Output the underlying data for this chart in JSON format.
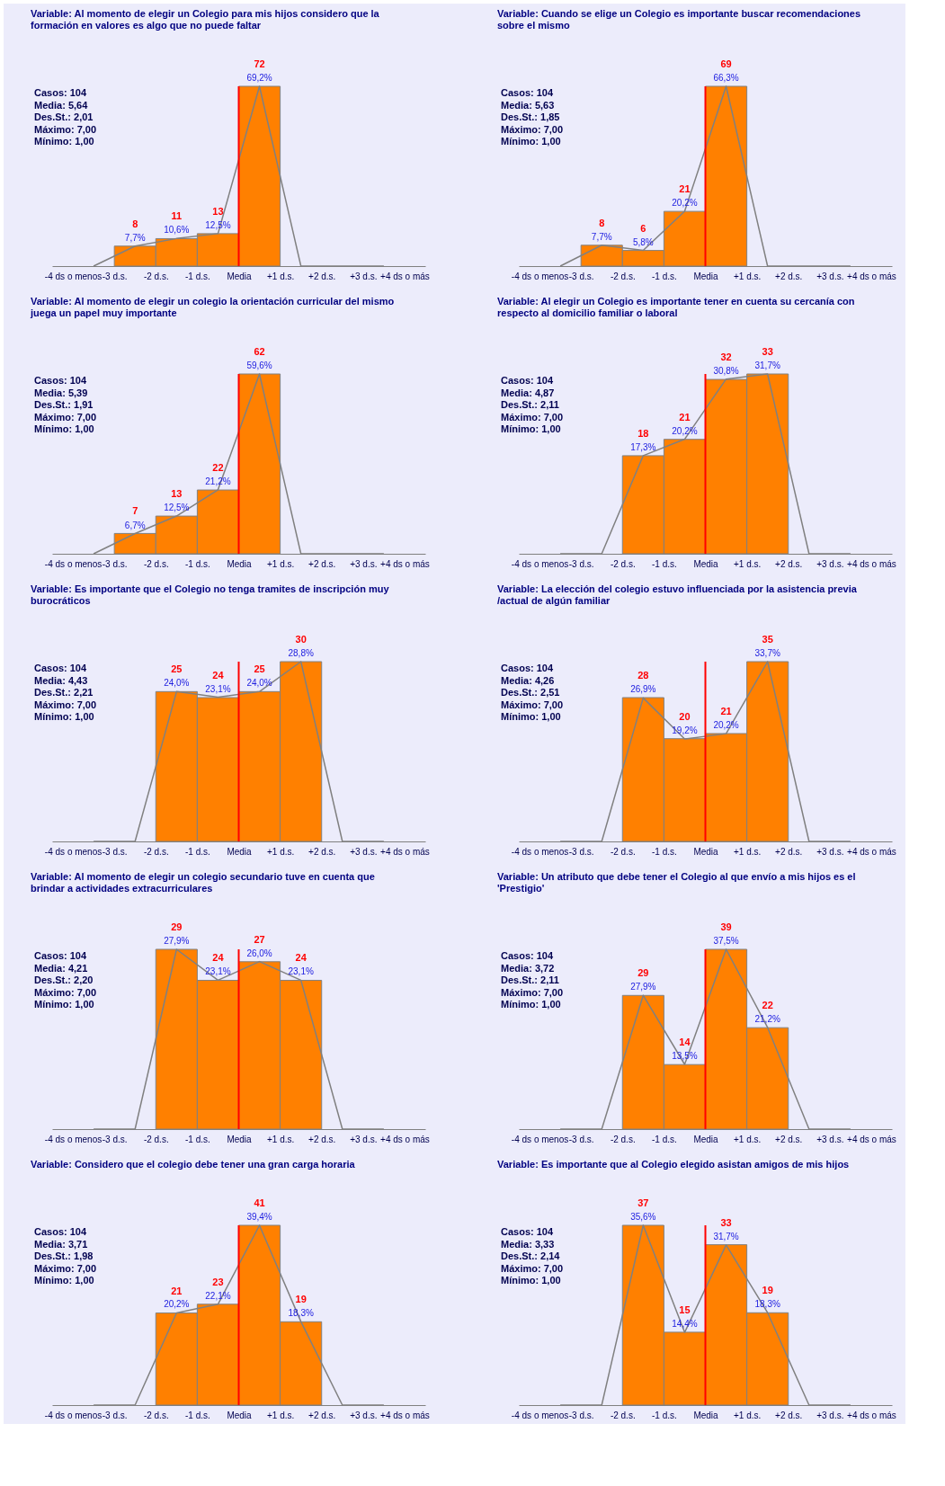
{
  "chart_data": [
    {
      "type": "bar",
      "title": "Variable: Al momento de elegir un Colegio para mis hijos considero que la formación en valores es algo que no puede faltar",
      "x": [
        -2.5,
        -1.5,
        -0.5,
        0.5
      ],
      "values": [
        8,
        11,
        13,
        72
      ],
      "data_labels": true,
      "color": "#ff8000",
      "xlim": [
        -4.5,
        4.5
      ],
      "xticks": [
        {
          "value": -4,
          "label": "-4 ds o menos"
        },
        {
          "value": -3,
          "label": "-3 d.s."
        },
        {
          "value": -2,
          "label": "-2 d.s."
        },
        {
          "value": -1,
          "label": "-1 d.s."
        },
        {
          "value": 0,
          "label": "Media"
        },
        {
          "value": 1,
          "label": "+1 d.s."
        },
        {
          "value": 2,
          "label": "+2 d.s."
        },
        {
          "value": 3,
          "label": "+3 d.s."
        },
        {
          "value": 4,
          "label": "+4 ds o más"
        }
      ],
      "tick_labels": "x",
      "series": [
        {
          "type": "line",
          "axis": "y2",
          "color": "#808080",
          "x": [
            -3.5,
            -2.5,
            -1.5,
            -0.5,
            0.5,
            1.5,
            2.5,
            3.5
          ],
          "values": [
            0,
            7.7,
            10.6,
            12.5,
            69.2,
            0,
            0,
            0
          ],
          "value_labels": [
            null,
            "7,7%",
            "10,6%",
            "12,5%",
            "69,2%",
            null,
            null,
            null
          ]
        }
      ],
      "ref_lines": [
        {
          "axis": "x",
          "value": 0,
          "color": "#ff0000"
        }
      ],
      "annotations": [
        "Casos: 104",
        "Media: 5,64",
        "Des.St.: 2,01",
        "Máximo: 7,00",
        "Mínimo: 1,00"
      ]
    },
    {
      "type": "bar",
      "title": "Variable: Cuando se elige un Colegio es importante buscar recomendaciones sobre el mismo",
      "x": [
        -2.5,
        -1.5,
        -0.5,
        0.5
      ],
      "values": [
        8,
        6,
        21,
        69
      ],
      "data_labels": true,
      "color": "#ff8000",
      "xlim": [
        -4.5,
        4.5
      ],
      "xticks": [
        {
          "value": -4,
          "label": "-4 ds o menos"
        },
        {
          "value": -3,
          "label": "-3 d.s."
        },
        {
          "value": -2,
          "label": "-2 d.s."
        },
        {
          "value": -1,
          "label": "-1 d.s."
        },
        {
          "value": 0,
          "label": "Media"
        },
        {
          "value": 1,
          "label": "+1 d.s."
        },
        {
          "value": 2,
          "label": "+2 d.s."
        },
        {
          "value": 3,
          "label": "+3 d.s."
        },
        {
          "value": 4,
          "label": "+4 ds o más"
        }
      ],
      "tick_labels": "x",
      "series": [
        {
          "type": "line",
          "axis": "y2",
          "color": "#808080",
          "x": [
            -3.5,
            -2.5,
            -1.5,
            -0.5,
            0.5,
            1.5,
            2.5,
            3.5
          ],
          "values": [
            0,
            7.7,
            5.8,
            20.2,
            66.3,
            0,
            0,
            0
          ],
          "value_labels": [
            null,
            "7,7%",
            "5,8%",
            "20,2%",
            "66,3%",
            null,
            null,
            null
          ]
        }
      ],
      "ref_lines": [
        {
          "axis": "x",
          "value": 0,
          "color": "#ff0000"
        }
      ],
      "annotations": [
        "Casos: 104",
        "Media: 5,63",
        "Des.St.: 1,85",
        "Máximo: 7,00",
        "Mínimo: 1,00"
      ]
    },
    {
      "type": "bar",
      "title": "Variable: Al momento de elegir un colegio la orientación curricular del mismo juega un papel muy importante",
      "x": [
        -2.5,
        -1.5,
        -0.5,
        0.5
      ],
      "values": [
        7,
        13,
        22,
        62
      ],
      "data_labels": true,
      "color": "#ff8000",
      "xlim": [
        -4.5,
        4.5
      ],
      "xticks": [
        {
          "value": -4,
          "label": "-4 ds o menos"
        },
        {
          "value": -3,
          "label": "-3 d.s."
        },
        {
          "value": -2,
          "label": "-2 d.s."
        },
        {
          "value": -1,
          "label": "-1 d.s."
        },
        {
          "value": 0,
          "label": "Media"
        },
        {
          "value": 1,
          "label": "+1 d.s."
        },
        {
          "value": 2,
          "label": "+2 d.s."
        },
        {
          "value": 3,
          "label": "+3 d.s."
        },
        {
          "value": 4,
          "label": "+4 ds o más"
        }
      ],
      "tick_labels": "x",
      "series": [
        {
          "type": "line",
          "axis": "y2",
          "color": "#808080",
          "x": [
            -3.5,
            -2.5,
            -1.5,
            -0.5,
            0.5,
            1.5,
            2.5,
            3.5
          ],
          "values": [
            0,
            6.7,
            12.5,
            21.2,
            59.6,
            0,
            0,
            0
          ],
          "value_labels": [
            null,
            "6,7%",
            "12,5%",
            "21,2%",
            "59,6%",
            null,
            null,
            null
          ]
        }
      ],
      "ref_lines": [
        {
          "axis": "x",
          "value": 0,
          "color": "#ff0000"
        }
      ],
      "annotations": [
        "Casos: 104",
        "Media: 5,39",
        "Des.St.: 1,91",
        "Máximo: 7,00",
        "Mínimo: 1,00"
      ]
    },
    {
      "type": "bar",
      "title": "Variable: Al elegir un Colegio es importante tener en cuenta su cercanía con respecto al domicilio familiar o laboral",
      "x": [
        -1.5,
        -0.5,
        0.5,
        1.5
      ],
      "values": [
        18,
        21,
        32,
        33
      ],
      "data_labels": true,
      "color": "#ff8000",
      "xlim": [
        -4.5,
        4.5
      ],
      "xticks": [
        {
          "value": -4,
          "label": "-4 ds o menos"
        },
        {
          "value": -3,
          "label": "-3 d.s."
        },
        {
          "value": -2,
          "label": "-2 d.s."
        },
        {
          "value": -1,
          "label": "-1 d.s."
        },
        {
          "value": 0,
          "label": "Media"
        },
        {
          "value": 1,
          "label": "+1 d.s."
        },
        {
          "value": 2,
          "label": "+2 d.s."
        },
        {
          "value": 3,
          "label": "+3 d.s."
        },
        {
          "value": 4,
          "label": "+4 ds o más"
        }
      ],
      "tick_labels": "x",
      "series": [
        {
          "type": "line",
          "axis": "y2",
          "color": "#808080",
          "x": [
            -3.5,
            -2.5,
            -1.5,
            -0.5,
            0.5,
            1.5,
            2.5,
            3.5
          ],
          "values": [
            0,
            0,
            17.3,
            20.2,
            30.8,
            31.7,
            0,
            0
          ],
          "value_labels": [
            null,
            null,
            "17,3%",
            "20,2%",
            "30,8%",
            "31,7%",
            null,
            null
          ]
        }
      ],
      "ref_lines": [
        {
          "axis": "x",
          "value": 0,
          "color": "#ff0000"
        }
      ],
      "annotations": [
        "Casos: 104",
        "Media: 4,87",
        "Des.St.: 2,11",
        "Máximo: 7,00",
        "Mínimo: 1,00"
      ]
    },
    {
      "type": "bar",
      "title": "Variable: Es importante que el Colegio no tenga tramites de inscripción muy burocráticos",
      "x": [
        -1.5,
        -0.5,
        0.5,
        1.5
      ],
      "values": [
        25,
        24,
        25,
        30
      ],
      "data_labels": true,
      "color": "#ff8000",
      "xlim": [
        -4.5,
        4.5
      ],
      "xticks": [
        {
          "value": -4,
          "label": "-4 ds o menos"
        },
        {
          "value": -3,
          "label": "-3 d.s."
        },
        {
          "value": -2,
          "label": "-2 d.s."
        },
        {
          "value": -1,
          "label": "-1 d.s."
        },
        {
          "value": 0,
          "label": "Media"
        },
        {
          "value": 1,
          "label": "+1 d.s."
        },
        {
          "value": 2,
          "label": "+2 d.s."
        },
        {
          "value": 3,
          "label": "+3 d.s."
        },
        {
          "value": 4,
          "label": "+4 ds o más"
        }
      ],
      "tick_labels": "x",
      "series": [
        {
          "type": "line",
          "axis": "y2",
          "color": "#808080",
          "x": [
            -3.5,
            -2.5,
            -1.5,
            -0.5,
            0.5,
            1.5,
            2.5,
            3.5
          ],
          "values": [
            0,
            0,
            24.0,
            23.1,
            24.0,
            28.8,
            0,
            0
          ],
          "value_labels": [
            null,
            null,
            "24,0%",
            "23,1%",
            "24,0%",
            "28,8%",
            null,
            null
          ]
        }
      ],
      "ref_lines": [
        {
          "axis": "x",
          "value": 0,
          "color": "#ff0000"
        }
      ],
      "annotations": [
        "Casos: 104",
        "Media: 4,43",
        "Des.St.: 2,21",
        "Máximo: 7,00",
        "Mínimo: 1,00"
      ]
    },
    {
      "type": "bar",
      "title": "Variable: La elección del colegio estuvo influenciada por la asistencia previa /actual de algún familiar",
      "x": [
        -1.5,
        -0.5,
        0.5,
        1.5
      ],
      "values": [
        28,
        20,
        21,
        35
      ],
      "data_labels": true,
      "color": "#ff8000",
      "xlim": [
        -4.5,
        4.5
      ],
      "xticks": [
        {
          "value": -4,
          "label": "-4 ds o menos"
        },
        {
          "value": -3,
          "label": "-3 d.s."
        },
        {
          "value": -2,
          "label": "-2 d.s."
        },
        {
          "value": -1,
          "label": "-1 d.s."
        },
        {
          "value": 0,
          "label": "Media"
        },
        {
          "value": 1,
          "label": "+1 d.s."
        },
        {
          "value": 2,
          "label": "+2 d.s."
        },
        {
          "value": 3,
          "label": "+3 d.s."
        },
        {
          "value": 4,
          "label": "+4 ds o más"
        }
      ],
      "tick_labels": "x",
      "series": [
        {
          "type": "line",
          "axis": "y2",
          "color": "#808080",
          "x": [
            -3.5,
            -2.5,
            -1.5,
            -0.5,
            0.5,
            1.5,
            2.5,
            3.5
          ],
          "values": [
            0,
            0,
            26.9,
            19.2,
            20.2,
            33.7,
            0,
            0
          ],
          "value_labels": [
            null,
            null,
            "26,9%",
            "19,2%",
            "20,2%",
            "33,7%",
            null,
            null
          ]
        }
      ],
      "ref_lines": [
        {
          "axis": "x",
          "value": 0,
          "color": "#ff0000"
        }
      ],
      "annotations": [
        "Casos: 104",
        "Media: 4,26",
        "Des.St.: 2,51",
        "Máximo: 7,00",
        "Mínimo: 1,00"
      ]
    },
    {
      "type": "bar",
      "title": "Variable: Al momento de elegir un colegio secundario tuve en cuenta que brindar a actividades extracurriculares",
      "x": [
        -1.5,
        -0.5,
        0.5,
        1.5
      ],
      "values": [
        29,
        24,
        27,
        24
      ],
      "data_labels": true,
      "color": "#ff8000",
      "xlim": [
        -4.5,
        4.5
      ],
      "xticks": [
        {
          "value": -4,
          "label": "-4 ds o menos"
        },
        {
          "value": -3,
          "label": "-3 d.s."
        },
        {
          "value": -2,
          "label": "-2 d.s."
        },
        {
          "value": -1,
          "label": "-1 d.s."
        },
        {
          "value": 0,
          "label": "Media"
        },
        {
          "value": 1,
          "label": "+1 d.s."
        },
        {
          "value": 2,
          "label": "+2 d.s."
        },
        {
          "value": 3,
          "label": "+3 d.s."
        },
        {
          "value": 4,
          "label": "+4 ds o más"
        }
      ],
      "tick_labels": "x",
      "series": [
        {
          "type": "line",
          "axis": "y2",
          "color": "#808080",
          "x": [
            -3.5,
            -2.5,
            -1.5,
            -0.5,
            0.5,
            1.5,
            2.5,
            3.5
          ],
          "values": [
            0,
            0,
            27.9,
            23.1,
            26.0,
            23.1,
            0,
            0
          ],
          "value_labels": [
            null,
            null,
            "27,9%",
            "23,1%",
            "26,0%",
            "23,1%",
            null,
            null
          ]
        }
      ],
      "ref_lines": [
        {
          "axis": "x",
          "value": 0,
          "color": "#ff0000"
        }
      ],
      "annotations": [
        "Casos: 104",
        "Media: 4,21",
        "Des.St.: 2,20",
        "Máximo: 7,00",
        "Mínimo: 1,00"
      ]
    },
    {
      "type": "bar",
      "title": "Variable: Un atributo que debe tener el Colegio al que envío a mis hijos es el 'Prestigio'",
      "x": [
        -1.5,
        -0.5,
        0.5,
        1.5
      ],
      "values": [
        29,
        14,
        39,
        22
      ],
      "data_labels": true,
      "color": "#ff8000",
      "xlim": [
        -4.5,
        4.5
      ],
      "xticks": [
        {
          "value": -4,
          "label": "-4 ds o menos"
        },
        {
          "value": -3,
          "label": "-3 d.s."
        },
        {
          "value": -2,
          "label": "-2 d.s."
        },
        {
          "value": -1,
          "label": "-1 d.s."
        },
        {
          "value": 0,
          "label": "Media"
        },
        {
          "value": 1,
          "label": "+1 d.s."
        },
        {
          "value": 2,
          "label": "+2 d.s."
        },
        {
          "value": 3,
          "label": "+3 d.s."
        },
        {
          "value": 4,
          "label": "+4 ds o más"
        }
      ],
      "tick_labels": "x",
      "series": [
        {
          "type": "line",
          "axis": "y2",
          "color": "#808080",
          "x": [
            -3.5,
            -2.5,
            -1.5,
            -0.5,
            0.5,
            1.5,
            2.5,
            3.5
          ],
          "values": [
            0,
            0,
            27.9,
            13.5,
            37.5,
            21.2,
            0,
            0
          ],
          "value_labels": [
            null,
            null,
            "27,9%",
            "13,5%",
            "37,5%",
            "21,2%",
            null,
            null
          ]
        }
      ],
      "ref_lines": [
        {
          "axis": "x",
          "value": 0,
          "color": "#ff0000"
        }
      ],
      "annotations": [
        "Casos: 104",
        "Media: 3,72",
        "Des.St.: 2,11",
        "Máximo: 7,00",
        "Mínimo: 1,00"
      ]
    },
    {
      "type": "bar",
      "title": "Variable: Considero que el colegio debe tener una gran carga horaria",
      "x": [
        -1.5,
        -0.5,
        0.5,
        1.5
      ],
      "values": [
        21,
        23,
        41,
        19
      ],
      "data_labels": true,
      "color": "#ff8000",
      "xlim": [
        -4.5,
        4.5
      ],
      "xticks": [
        {
          "value": -4,
          "label": "-4 ds o menos"
        },
        {
          "value": -3,
          "label": "-3 d.s."
        },
        {
          "value": -2,
          "label": "-2 d.s."
        },
        {
          "value": -1,
          "label": "-1 d.s."
        },
        {
          "value": 0,
          "label": "Media"
        },
        {
          "value": 1,
          "label": "+1 d.s."
        },
        {
          "value": 2,
          "label": "+2 d.s."
        },
        {
          "value": 3,
          "label": "+3 d.s."
        },
        {
          "value": 4,
          "label": "+4 ds o más"
        }
      ],
      "tick_labels": "x",
      "series": [
        {
          "type": "line",
          "axis": "y2",
          "color": "#808080",
          "x": [
            -3.5,
            -2.5,
            -1.5,
            -0.5,
            0.5,
            1.5,
            2.5,
            3.5
          ],
          "values": [
            0,
            0,
            20.2,
            22.1,
            39.4,
            18.3,
            0,
            0
          ],
          "value_labels": [
            null,
            null,
            "20,2%",
            "22,1%",
            "39,4%",
            "18,3%",
            null,
            null
          ]
        }
      ],
      "ref_lines": [
        {
          "axis": "x",
          "value": 0,
          "color": "#ff0000"
        }
      ],
      "annotations": [
        "Casos: 104",
        "Media: 3,71",
        "Des.St.: 1,98",
        "Máximo: 7,00",
        "Mínimo: 1,00"
      ]
    },
    {
      "type": "bar",
      "title": "Variable: Es importante que al Colegio elegido asistan amigos de mis hijos",
      "x": [
        -1.5,
        -0.5,
        0.5,
        1.5
      ],
      "values": [
        37,
        15,
        33,
        19
      ],
      "data_labels": true,
      "color": "#ff8000",
      "xlim": [
        -4.5,
        4.5
      ],
      "xticks": [
        {
          "value": -4,
          "label": "-4 ds o menos"
        },
        {
          "value": -3,
          "label": "-3 d.s."
        },
        {
          "value": -2,
          "label": "-2 d.s."
        },
        {
          "value": -1,
          "label": "-1 d.s."
        },
        {
          "value": 0,
          "label": "Media"
        },
        {
          "value": 1,
          "label": "+1 d.s."
        },
        {
          "value": 2,
          "label": "+2 d.s."
        },
        {
          "value": 3,
          "label": "+3 d.s."
        },
        {
          "value": 4,
          "label": "+4 ds o más"
        }
      ],
      "tick_labels": "x",
      "series": [
        {
          "type": "line",
          "axis": "y2",
          "color": "#808080",
          "x": [
            -3.5,
            -2.5,
            -1.5,
            -0.5,
            0.5,
            1.5,
            2.5,
            3.5
          ],
          "values": [
            0,
            0,
            35.6,
            14.4,
            31.7,
            18.3,
            0,
            0
          ],
          "value_labels": [
            null,
            null,
            "35,6%",
            "14,4%",
            "31,7%",
            "18,3%",
            null,
            null
          ]
        }
      ],
      "ref_lines": [
        {
          "axis": "x",
          "value": 0,
          "color": "#ff0000"
        }
      ],
      "annotations": [
        "Casos: 104",
        "Media: 3,33",
        "Des.St.: 2,14",
        "Máximo: 7,00",
        "Mínimo: 1,00"
      ]
    }
  ]
}
